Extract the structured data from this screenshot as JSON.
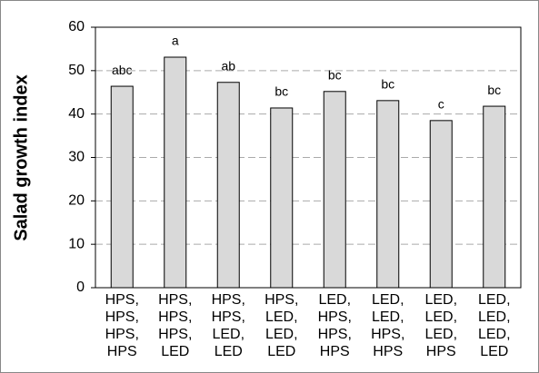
{
  "chart_data": {
    "type": "bar",
    "y_label": "Salad growth index",
    "categories": [
      [
        "HPS,",
        "HPS,",
        "HPS,",
        "HPS"
      ],
      [
        "HPS,",
        "HPS,",
        "HPS,",
        "LED"
      ],
      [
        "HPS,",
        "HPS,",
        "LED,",
        "LED"
      ],
      [
        "HPS,",
        "LED,",
        "LED,",
        "LED"
      ],
      [
        "LED,",
        "HPS,",
        "HPS,",
        "HPS"
      ],
      [
        "LED,",
        "LED,",
        "HPS,",
        "HPS"
      ],
      [
        "LED,",
        "LED,",
        "LED,",
        "HPS"
      ],
      [
        "LED,",
        "LED,",
        "LED,",
        "LED"
      ]
    ],
    "values": [
      46.4,
      53.1,
      47.3,
      41.4,
      45.2,
      43.1,
      38.5,
      41.8
    ],
    "annotations": [
      "abc",
      "a",
      "ab",
      "bc",
      "bc",
      "bc",
      "c",
      "bc"
    ],
    "color": "#d9d9d9",
    "ylim": [
      0,
      60
    ],
    "yticks": [
      0,
      10,
      20,
      30,
      40,
      50,
      60
    ],
    "grid": true
  }
}
